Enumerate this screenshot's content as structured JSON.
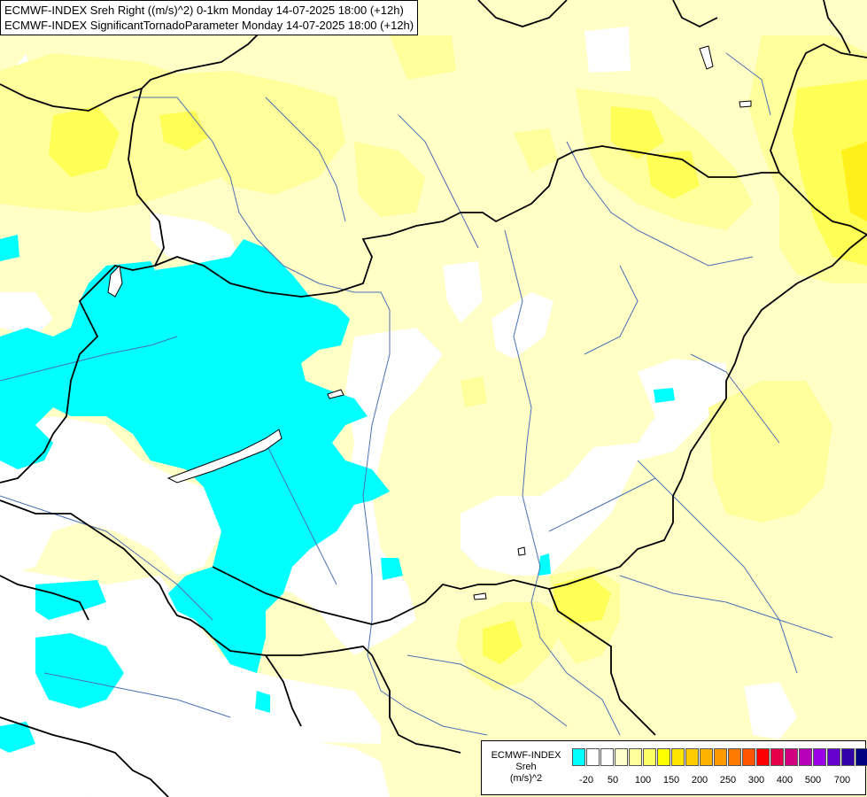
{
  "titles": {
    "line1": "ECMWF-INDEX Sreh Right ((m/s)^2) 0-1km Monday 14-07-2025 18:00 (+12h)",
    "line2": "ECMWF-INDEX SignificantTornadoParameter Monday 14-07-2025 18:00 (+12h)"
  },
  "legend": {
    "line1": "ECMWF-INDEX",
    "line2": "Sreh",
    "line3": "(m/s)^2",
    "swatch_colors": [
      "#00ffff",
      "#ffffff",
      "#ffffff",
      "#ffffcc",
      "#ffff99",
      "#ffff66",
      "#ffff00",
      "#ffe600",
      "#ffcc00",
      "#ffb300",
      "#ff9900",
      "#ff7a00",
      "#ff5500",
      "#ff0000",
      "#e6004c",
      "#d10080",
      "#b800b8",
      "#9900e6",
      "#6600cc",
      "#3300aa",
      "#000080"
    ],
    "labels": [
      "-20",
      "50",
      "100",
      "150",
      "200",
      "250",
      "300",
      "400",
      "500",
      "700"
    ]
  },
  "colors": {
    "cyan": "#00ffff",
    "pale_yellow": "#ffffc6",
    "light_yellow": "#ffff9c",
    "yellow": "#ffff55",
    "bright_yellow": "#ffef1a",
    "border": "#000000",
    "river": "#4a6fb5"
  }
}
